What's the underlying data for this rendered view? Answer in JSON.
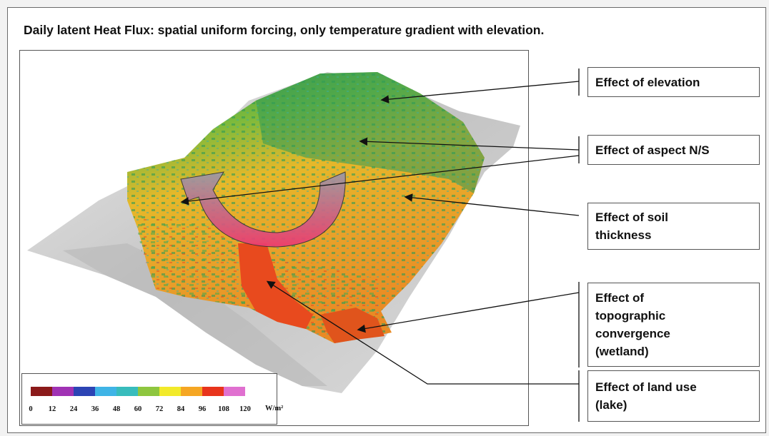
{
  "title": "Daily latent Heat Flux: spatial uniform forcing, only temperature gradient with elevation.",
  "labels": {
    "elevation": "Effect of elevation",
    "aspect": "Effect of aspect N/S",
    "soil": [
      "Effect of soil",
      "thickness"
    ],
    "topo": [
      "Effect of",
      "topographic",
      "convergence",
      "(wetland)"
    ],
    "landuse": [
      "Effect of land use",
      "(lake)"
    ]
  },
  "legend": {
    "colors": [
      "#8b1a1a",
      "#a032b4",
      "#2c44b4",
      "#3fb4e6",
      "#38bcbc",
      "#8ec63f",
      "#f2ea2a",
      "#f5a623",
      "#e8341c",
      "#e070d0"
    ],
    "ticks": [
      "0",
      "12",
      "24",
      "36",
      "48",
      "60",
      "72",
      "84",
      "96",
      "108",
      "120"
    ],
    "unit": "W/m²"
  }
}
